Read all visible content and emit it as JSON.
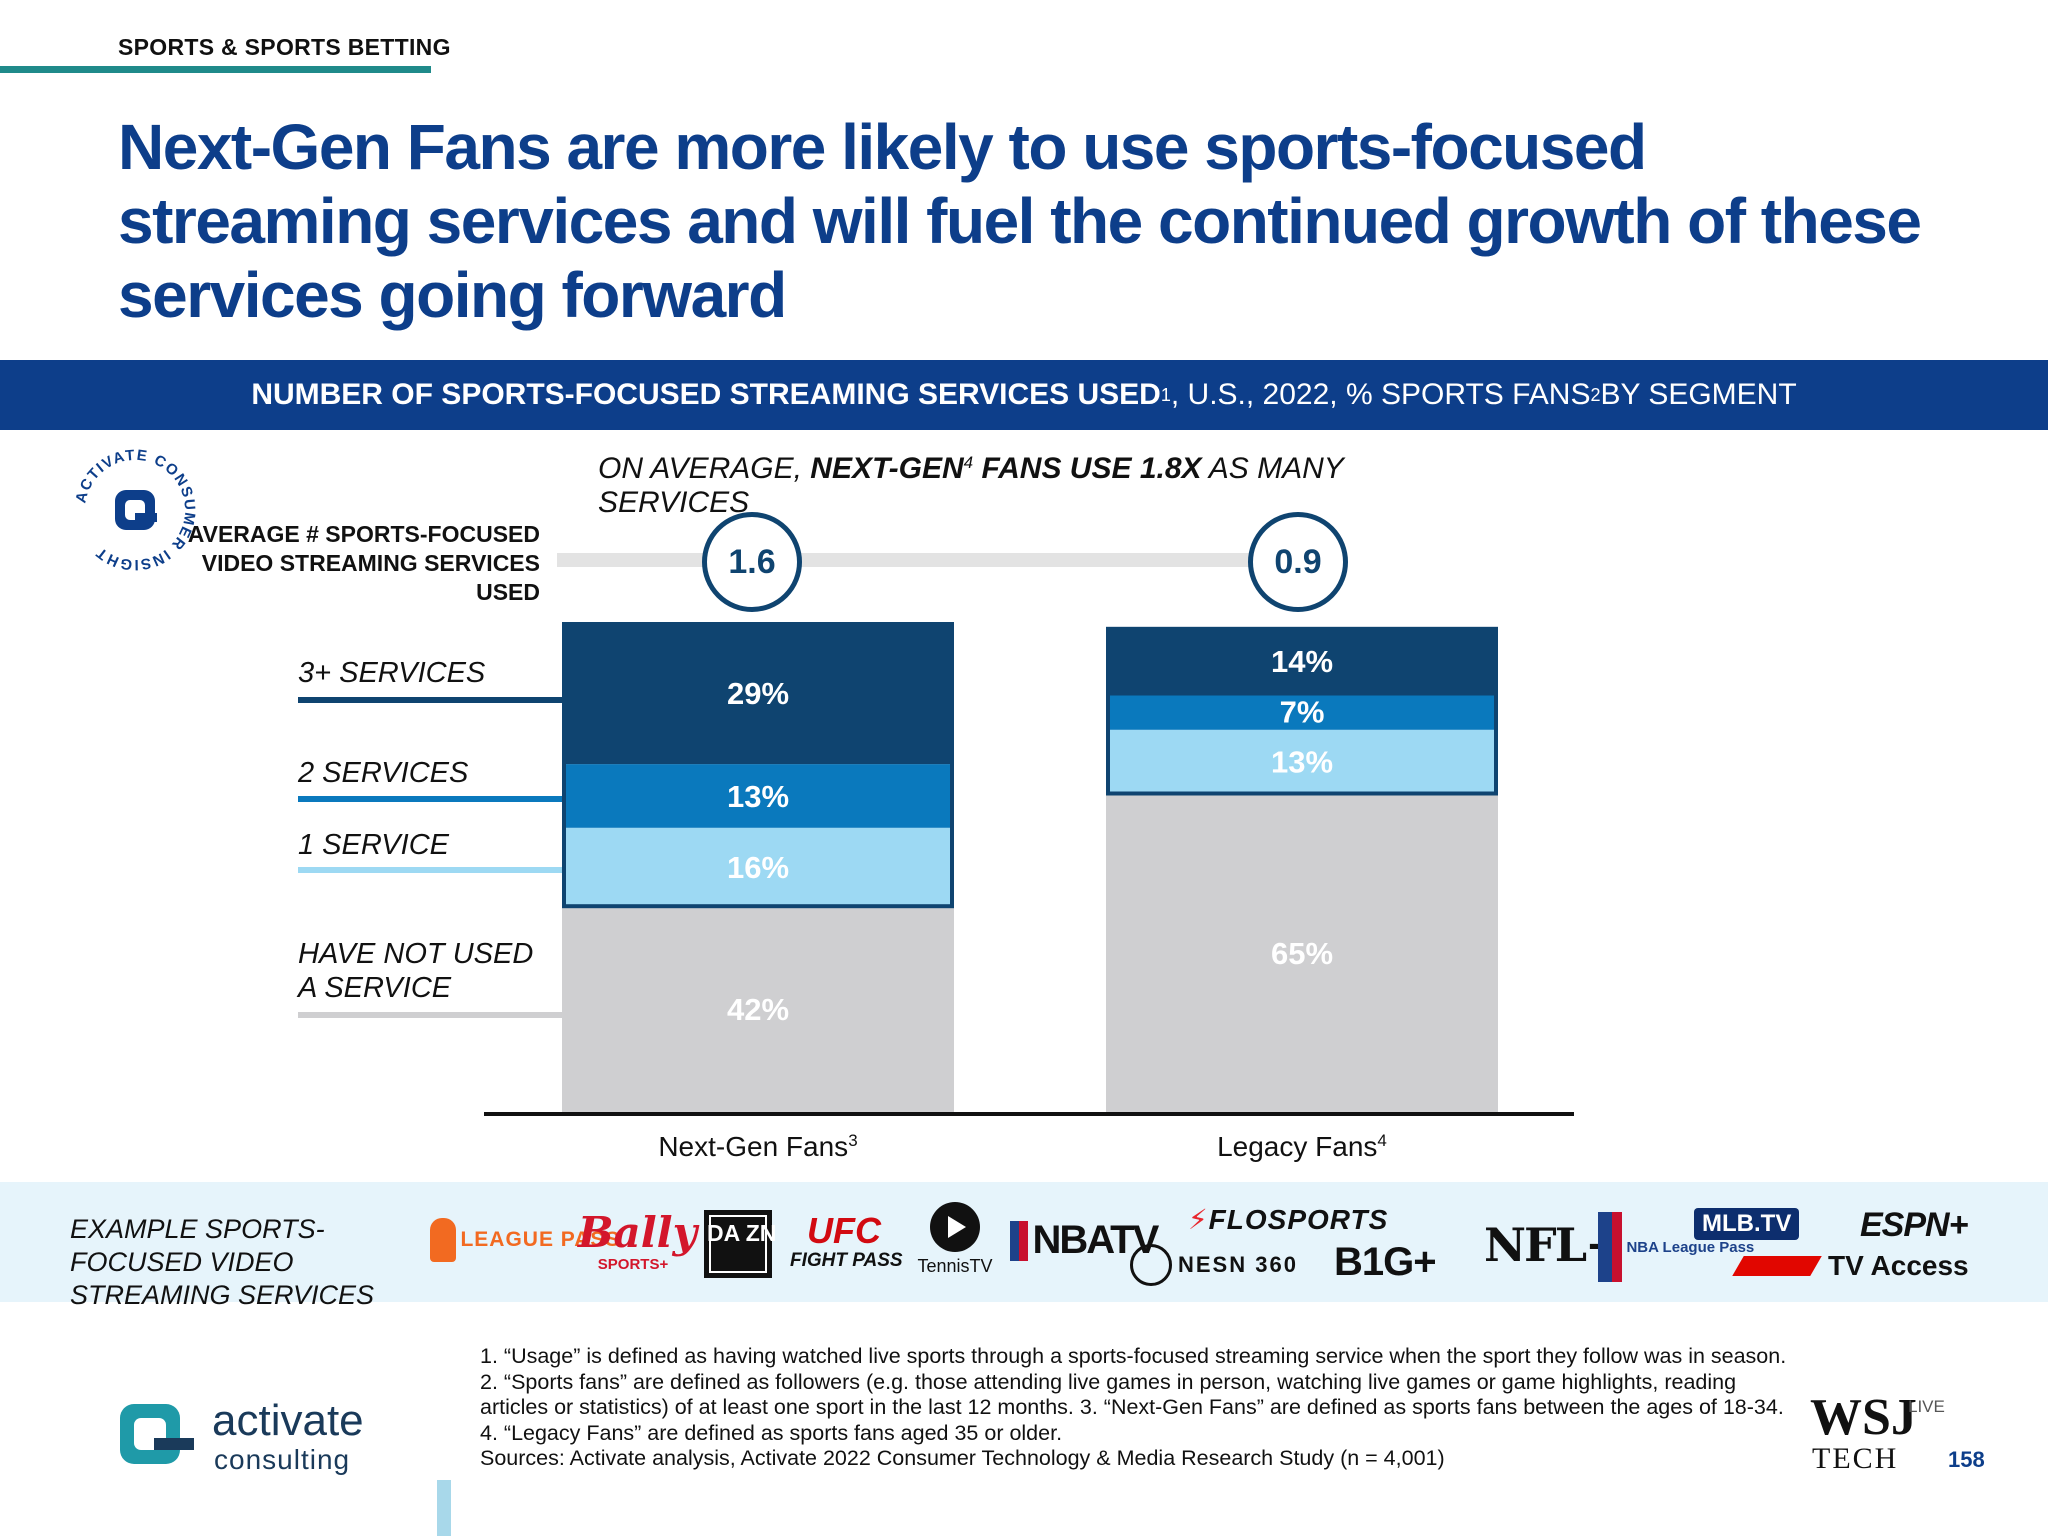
{
  "header": {
    "section": "SPORTS & SPORTS BETTING",
    "headline": "Next-Gen Fans are more likely to use sports-focused streaming services and will fuel the continued growth of these services going forward"
  },
  "banner": {
    "bold": "NUMBER OF SPORTS-FOCUSED STREAMING SERVICES USED",
    "sup1": "1",
    "rest1": ", U.S., 2022, % SPORTS FANS",
    "sup2": "2",
    "rest2": " BY SEGMENT"
  },
  "seal": {
    "text": "ACTIVATE CONSUMER INSIGHT",
    "icon": "activate-a-icon"
  },
  "subhead": {
    "pre": "ON AVERAGE, ",
    "bold1": "NEXT-GEN",
    "sup": "4",
    "bold2": " FANS USE 1.8X",
    "post": " AS MANY SERVICES"
  },
  "average": {
    "label": "AVERAGE # SPORTS-FOCUSED VIDEO STREAMING SERVICES USED",
    "values": [
      "1.6",
      "0.9"
    ]
  },
  "segment_labels": [
    "3+ SERVICES",
    "2 SERVICES",
    "1 SERVICE",
    "HAVE NOT USED A SERVICE"
  ],
  "chart_data": {
    "type": "bar",
    "stacked": true,
    "categories": [
      "Next-Gen Fans",
      "Legacy Fans"
    ],
    "category_sups": [
      "3",
      "4"
    ],
    "series": [
      {
        "name": "HAVE NOT USED A SERVICE",
        "values": [
          42,
          65
        ],
        "color": "#cfcfd1"
      },
      {
        "name": "1 SERVICE",
        "values": [
          16,
          13
        ],
        "color": "#9dd9f3"
      },
      {
        "name": "2 SERVICES",
        "values": [
          13,
          7
        ],
        "color": "#0a79bd"
      },
      {
        "name": "3+ SERVICES",
        "values": [
          29,
          14
        ],
        "color": "#0f4470"
      }
    ],
    "unit": "%",
    "ylim": [
      0,
      100
    ],
    "averages": [
      1.6,
      0.9
    ]
  },
  "strip": {
    "label": "EXAMPLE SPORTS-FOCUSED VIDEO STREAMING SERVICES",
    "logos": {
      "league_pass": "LEAGUE PASS",
      "bally": "Bally",
      "bally_sub": "SPORTS+",
      "dazn": "DA ZN",
      "ufc": "UFC",
      "ufc_sub": "FIGHT PASS",
      "tennis": "TennisTV",
      "nbatv": "NBATV",
      "flosports": "FLOSPORTS",
      "nesn": "NESN 360",
      "big10": "B1G+",
      "nfl": "NFL+",
      "nba_lp": "NBA League Pass",
      "mlbtv": "MLB.TV",
      "espn": "ESPN+",
      "f1tv": "TV Access"
    }
  },
  "footnote": "1. “Usage” is defined as having watched live sports through a sports-focused streaming service when the sport they follow was in season.  2. “Sports fans” are defined as followers (e.g. those attending live games in person, watching live games or game highlights, reading articles or statistics) of at least one sport in the last 12 months.  3. “Next-Gen Fans” are defined as sports fans between the ages of 18-34.  4. “Legacy Fans” are defined as sports fans aged 35 or older.",
  "sources": "Sources: Activate analysis, Activate 2022 Consumer Technology & Media Research Study (n = 4,001)",
  "footer": {
    "brand1": "activate",
    "brand2": "consulting",
    "wsj1": "WSJ",
    "wsj2": "TECH",
    "wsj3": "LIVE",
    "page": "158"
  },
  "colors": {
    "navy": "#0d3e8a",
    "teal": "#1f8a8a",
    "dark_blue": "#0f4470",
    "mid_blue": "#0a79bd",
    "light_blue": "#9dd9f3",
    "gray": "#cfcfd1"
  }
}
